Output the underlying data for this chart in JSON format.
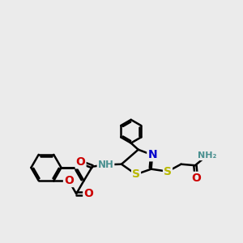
{
  "background_color": "#ebebeb",
  "bond_color": "#000000",
  "bond_width": 1.8,
  "dbo": 0.07,
  "atom_colors": {
    "N": "#0000cc",
    "O": "#cc0000",
    "S": "#b8b800",
    "H": "#4a9090",
    "C": "#000000"
  },
  "font_size": 9,
  "figsize": [
    3.0,
    3.0
  ],
  "dpi": 100,
  "xlim": [
    0,
    10
  ],
  "ylim": [
    0,
    10
  ]
}
